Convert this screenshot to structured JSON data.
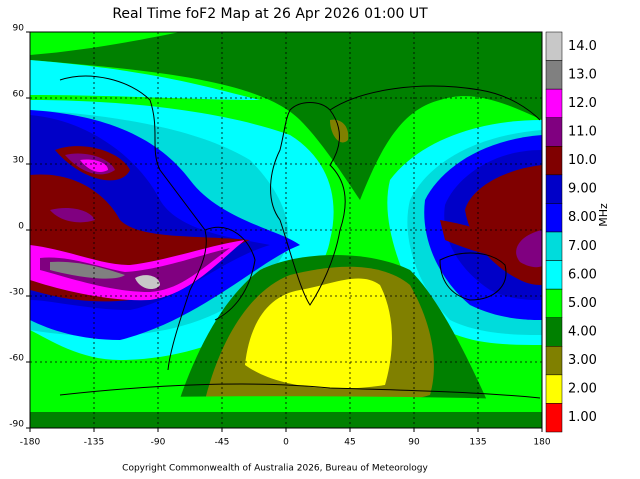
{
  "title": "Real Time foF2 Map at 26 Apr 2026 01:00 UT",
  "map": {
    "xlim": [
      -180,
      180
    ],
    "xticks": [
      -180,
      -135,
      -90,
      -45,
      0,
      45,
      90,
      135,
      180
    ],
    "ylim": [
      -90,
      90
    ],
    "yticks": [
      -90,
      -60,
      -30,
      0,
      30,
      60,
      90
    ],
    "grid": true
  },
  "colorbar": {
    "label": "MHz",
    "levels": [
      {
        "value": 14,
        "label": "14.0",
        "color": "#c8c8c8"
      },
      {
        "value": 13,
        "label": "13.0",
        "color": "#808080"
      },
      {
        "value": 12,
        "label": "12.0",
        "color": "#ff00ff"
      },
      {
        "value": 11,
        "label": "11.0",
        "color": "#800080"
      },
      {
        "value": 10,
        "label": "10.0",
        "color": "#800000"
      },
      {
        "value": 9,
        "label": "9.00",
        "color": "#0000c8"
      },
      {
        "value": 8,
        "label": "8.00",
        "color": "#0000ff"
      },
      {
        "value": 7,
        "label": "7.00",
        "color": "#00dcdc"
      },
      {
        "value": 6,
        "label": "6.00",
        "color": "#00ffff"
      },
      {
        "value": 5,
        "label": "5.00",
        "color": "#00ff00"
      },
      {
        "value": 4,
        "label": "4.00",
        "color": "#008000"
      },
      {
        "value": 3,
        "label": "3.00",
        "color": "#808000"
      },
      {
        "value": 2,
        "label": "2.00",
        "color": "#ffff00"
      },
      {
        "value": 1,
        "label": "1.00",
        "color": "#ff0000"
      }
    ]
  },
  "copyright": "Copyright Commonwealth of Australia 2026, Bureau of Meteorology"
}
